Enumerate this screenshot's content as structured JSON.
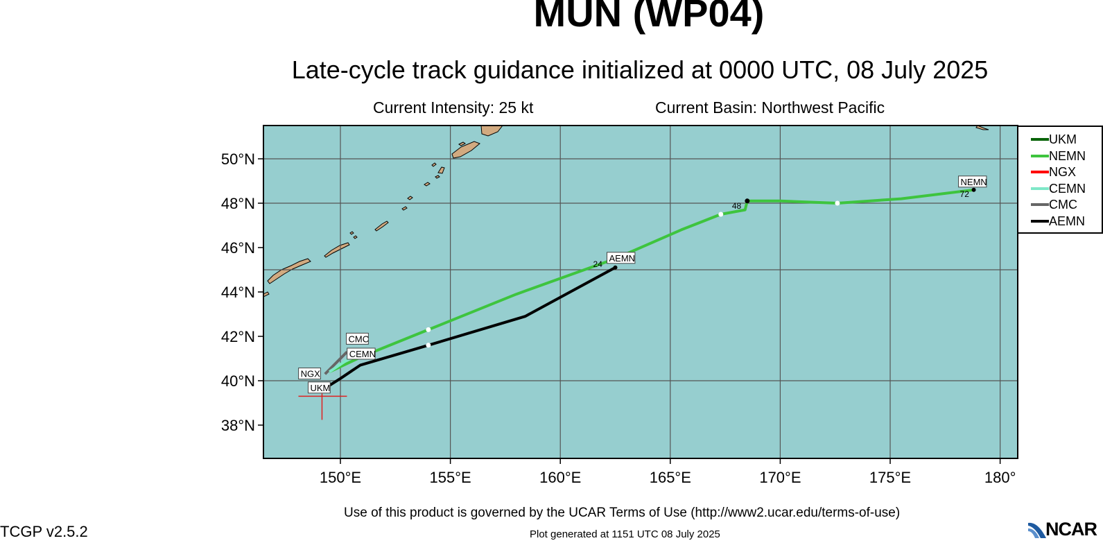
{
  "header": {
    "title": "MUN (WP04)",
    "subtitle": "Late-cycle track guidance initialized at 0000 UTC, 08 July 2025",
    "current_intensity": "Current Intensity: 25 kt",
    "current_basin": "Current Basin: Northwest Pacific"
  },
  "map": {
    "ocean_color": "#96cecf",
    "land_color": "#d2aa80",
    "lon_range": [
      146.5,
      180.8
    ],
    "lat_range": [
      36.5,
      51.5
    ],
    "lat_ticks": [
      {
        "value": 50,
        "label": "50°N"
      },
      {
        "value": 48,
        "label": "48°N"
      },
      {
        "value": 46,
        "label": "46°N"
      },
      {
        "value": 44,
        "label": "44°N"
      },
      {
        "value": 42,
        "label": "42°N"
      },
      {
        "value": 40,
        "label": "40°N"
      },
      {
        "value": 38,
        "label": "38°N"
      }
    ],
    "lon_ticks": [
      {
        "value": 150,
        "label": "150°E"
      },
      {
        "value": 155,
        "label": "155°E"
      },
      {
        "value": 160,
        "label": "160°E"
      },
      {
        "value": 165,
        "label": "165°E"
      },
      {
        "value": 170,
        "label": "170°E"
      },
      {
        "value": 175,
        "label": "175°E"
      },
      {
        "value": 180,
        "label": "180°"
      }
    ],
    "grid_lons": [
      150,
      155,
      160,
      165,
      170,
      175,
      180
    ],
    "grid_lats": [
      50,
      48,
      45,
      40
    ],
    "current_position": {
      "lon": 149.1,
      "lat": 39.3
    }
  },
  "legend": [
    {
      "name": "UKM",
      "color": "#0a640a"
    },
    {
      "name": "NEMN",
      "color": "#3ec43e"
    },
    {
      "name": "NGX",
      "color": "#ff0000"
    },
    {
      "name": "CEMN",
      "color": "#7fe8c8"
    },
    {
      "name": "CMC",
      "color": "#666666"
    },
    {
      "name": "AEMN",
      "color": "#000000"
    }
  ],
  "tracks": [
    {
      "name": "NEMN",
      "color": "#3ec43e",
      "points": [
        [
          149.5,
          40.4
        ],
        [
          151,
          41.1
        ],
        [
          154,
          42.3
        ],
        [
          158,
          43.9
        ],
        [
          162.5,
          45.5
        ],
        [
          165.5,
          46.8
        ],
        [
          167.3,
          47.5
        ],
        [
          168.4,
          47.7
        ],
        [
          168.5,
          48.1
        ],
        [
          170,
          48.1
        ],
        [
          172.6,
          48.0
        ],
        [
          175.5,
          48.2
        ],
        [
          178.8,
          48.6
        ]
      ],
      "label": "NEMN",
      "end_hour": "72"
    },
    {
      "name": "AEMN",
      "color": "#000000",
      "points": [
        [
          149.2,
          39.6
        ],
        [
          150,
          40.1
        ],
        [
          150.9,
          40.7
        ],
        [
          154,
          41.6
        ],
        [
          158.4,
          42.9
        ],
        [
          162.5,
          45.1
        ]
      ],
      "label": "AEMN",
      "end_hour": "24"
    },
    {
      "name": "CMC",
      "color": "#666666",
      "points": [
        [
          149.3,
          40.3
        ],
        [
          150.3,
          41.3
        ]
      ],
      "label": "CMC"
    },
    {
      "name": "CEMN",
      "color": "#7fe8c8",
      "points": [
        [
          149.5,
          40.4
        ],
        [
          150.4,
          41.0
        ]
      ],
      "label": "CEMN"
    }
  ],
  "hour_marks": [
    {
      "label": "48",
      "lon": 168.5,
      "lat": 48.1
    }
  ],
  "model_labels": {
    "ngx": "NGX",
    "ukm": "UKM"
  },
  "footer": {
    "terms": "Use of this product is governed by the UCAR Terms of Use (http://www2.ucar.edu/terms-of-use)",
    "version": "TCGP v2.5.2",
    "generated": "Plot generated at 1151 UTC   08 July 2025",
    "logo": "NCAR"
  }
}
